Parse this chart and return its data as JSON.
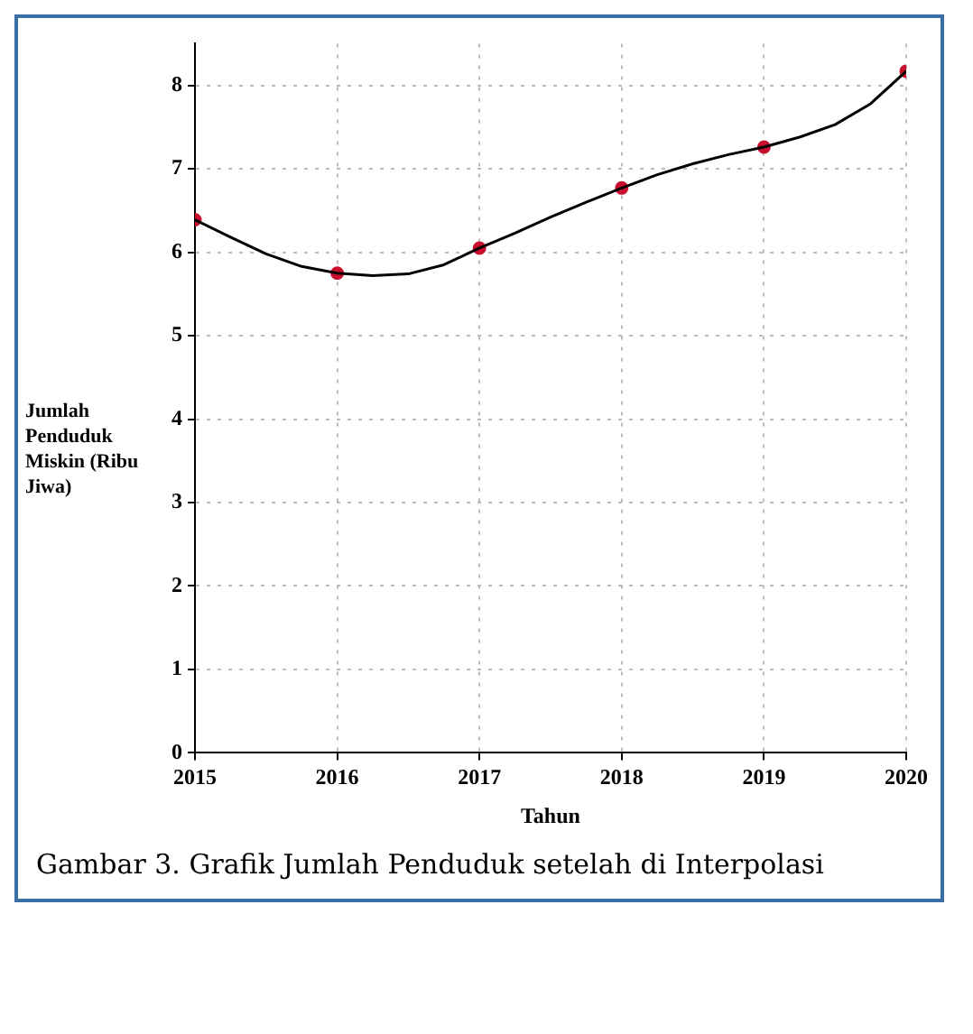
{
  "chart_data": {
    "type": "line",
    "xlabel": "Tahun",
    "ylabel": "Jumlah Penduduk Miskin (Ribu Jiwa)",
    "xlim": [
      2015,
      2020
    ],
    "xticks": [
      2015,
      2016,
      2017,
      2018,
      2019,
      2020
    ],
    "ylim": [
      0,
      8.5
    ],
    "yticks": [
      0,
      1,
      2,
      3,
      4,
      5,
      6,
      7,
      8
    ],
    "grid": true,
    "series": [
      {
        "type": "line",
        "marker": "none",
        "color": "#000000",
        "x": [
          2015,
          2015.25,
          2015.5,
          2015.75,
          2016,
          2016.25,
          2016.5,
          2016.75,
          2017,
          2017.25,
          2017.5,
          2017.75,
          2018,
          2018.25,
          2018.5,
          2018.75,
          2019,
          2019.25,
          2019.5,
          2019.75,
          2020
        ],
        "values": [
          6.39,
          6.18,
          5.98,
          5.83,
          5.75,
          5.72,
          5.74,
          5.85,
          6.05,
          6.23,
          6.42,
          6.6,
          6.77,
          6.93,
          7.06,
          7.17,
          7.26,
          7.38,
          7.53,
          7.78,
          8.17
        ]
      },
      {
        "type": "scatter",
        "marker": "circle",
        "color": "#c8102e",
        "x": [
          2015,
          2016,
          2017,
          2018,
          2019,
          2020
        ],
        "values": [
          6.39,
          5.75,
          6.05,
          6.77,
          7.26,
          8.17
        ]
      }
    ],
    "annotations": [
      "Gambar 3. Grafik Jumlah Penduduk setelah di Interpolasi"
    ]
  }
}
